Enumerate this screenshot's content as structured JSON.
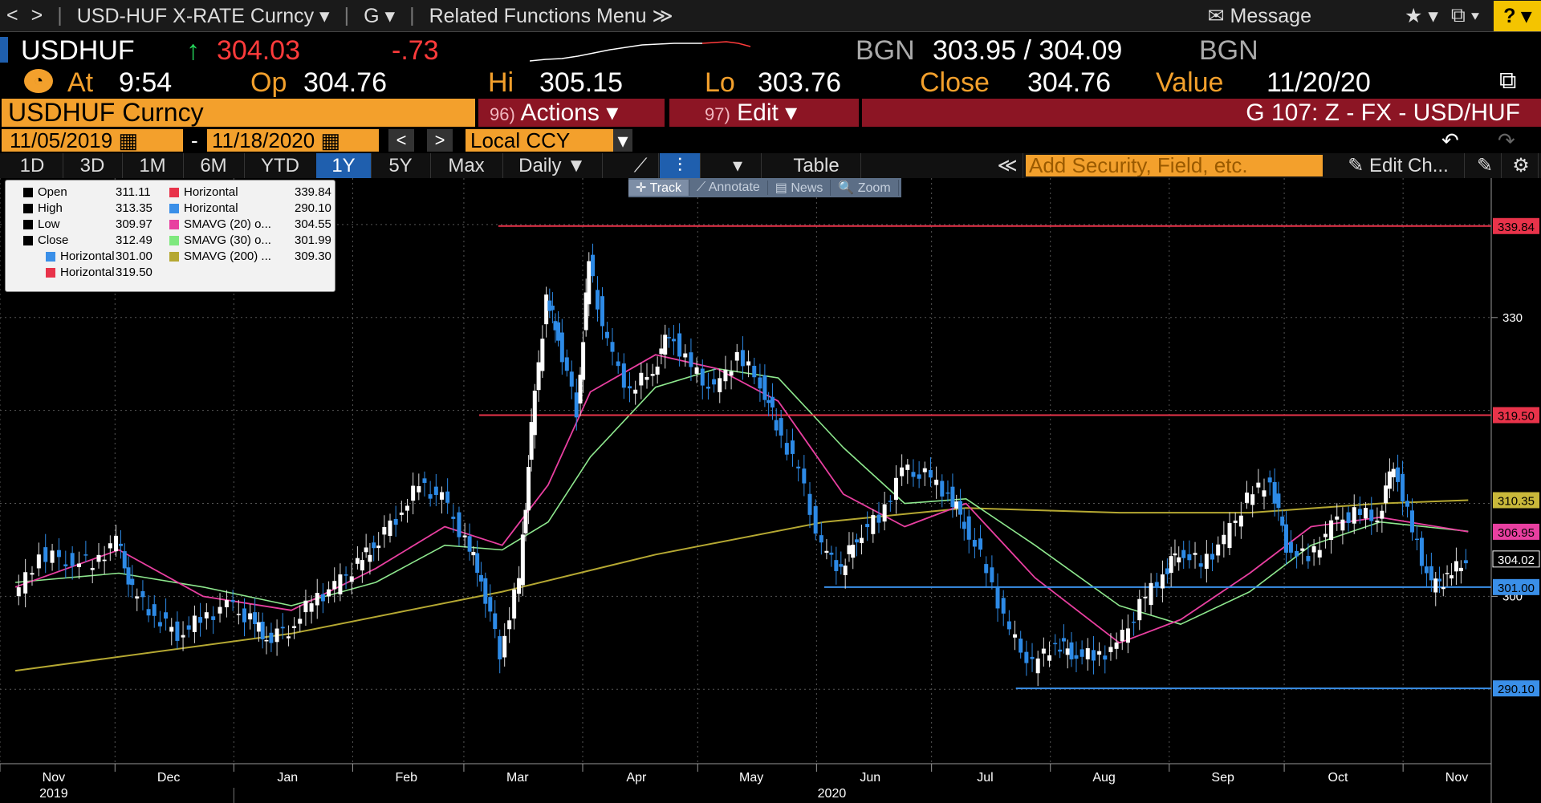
{
  "nav": {
    "back": "<",
    "fwd": ">",
    "ticker_menu": "USD-HUF X-RATE Curncy",
    "g_menu": "G",
    "related": "Related Functions Menu",
    "message": "Message",
    "help": "?"
  },
  "quote": {
    "symbol": "USDHUF",
    "last": "304.03",
    "change": "-.73",
    "bid_src": "BGN",
    "bid_ask": "303.95 / 304.09",
    "ask_src": "BGN",
    "at_label": "At",
    "at_time": "9:54",
    "op_label": "Op",
    "op": "304.76",
    "hi_label": "Hi",
    "hi": "305.15",
    "lo_label": "Lo",
    "lo": "303.76",
    "close_label": "Close",
    "close": "304.76",
    "value_label": "Value",
    "value": "11/20/20"
  },
  "security_bar": {
    "name": "USDHUF Curncy",
    "actions_num": "96)",
    "actions": "Actions",
    "edit_num": "97)",
    "edit": "Edit",
    "title": "G 107: Z - FX - USD/HUF"
  },
  "date_bar": {
    "start": "11/05/2019",
    "dash": "-",
    "end": "11/18/2020",
    "ccy": "Local CCY"
  },
  "tabs": [
    "1D",
    "3D",
    "1M",
    "6M",
    "YTD",
    "1Y",
    "5Y",
    "Max"
  ],
  "active_tab": "1Y",
  "period": "Daily",
  "table_label": "Table",
  "add_security_placeholder": "Add Security, Field, etc.",
  "edit_chart": "Edit Ch...",
  "chart_tools": [
    "Track",
    "Annotate",
    "News",
    "Zoom"
  ],
  "legend": [
    {
      "label": "Open",
      "value": "311.11",
      "color": "#000000"
    },
    {
      "label": "High",
      "value": "313.35",
      "color": "#000000"
    },
    {
      "label": "Low",
      "value": "309.97",
      "color": "#000000"
    },
    {
      "label": "Close",
      "value": "312.49",
      "color": "#000000"
    },
    {
      "label": "Horizontal",
      "value": "301.00",
      "color": "#3a8fe8"
    },
    {
      "label": "Horizontal",
      "value": "319.50",
      "color": "#e8334a"
    },
    {
      "label": "Horizontal",
      "value": "339.84",
      "color": "#e8334a"
    },
    {
      "label": "Horizontal",
      "value": "290.10",
      "color": "#3a8fe8"
    },
    {
      "label": "SMAVG (20)  o...",
      "value": "304.55",
      "color": "#e83fa0"
    },
    {
      "label": "SMAVG (30)  o...",
      "value": "301.99",
      "color": "#7ee87e"
    },
    {
      "label": "SMAVG (200)  ...",
      "value": "309.30",
      "color": "#b5a832"
    }
  ],
  "chart_data": {
    "type": "candlestick",
    "ylim": [
      282,
      345
    ],
    "y_ticks": [
      300,
      330
    ],
    "x_tick_labels": [
      "Nov",
      "Dec",
      "Jan",
      "Feb",
      "Mar",
      "Apr",
      "May",
      "Jun",
      "Jul",
      "Aug",
      "Sep",
      "Oct",
      "Nov"
    ],
    "year_labels": [
      "2019",
      "2020"
    ],
    "horizontal_lines": [
      {
        "value": 339.84,
        "label": "339.84",
        "color": "#e8334a",
        "from": "2020-03-10"
      },
      {
        "value": 319.5,
        "label": "319.50",
        "color": "#e8334a",
        "from": "2020-03-05"
      },
      {
        "value": 301.0,
        "label": "301.00",
        "color": "#3a8fe8",
        "from": "2020-06-03"
      },
      {
        "value": 290.1,
        "label": "290.10",
        "color": "#3a8fe8",
        "from": "2020-07-23"
      }
    ],
    "right_badges": [
      {
        "value": 310.35,
        "label": "310.35",
        "color": "#c9b83a"
      },
      {
        "value": 306.95,
        "label": "306.95",
        "color": "#e83fa0"
      },
      {
        "value": 304.02,
        "label": "304.02",
        "color": "#ffffff"
      }
    ],
    "close_series": [
      {
        "x": "2019-11-05",
        "y": 299.5
      },
      {
        "x": "2019-11-12",
        "y": 304.5
      },
      {
        "x": "2019-11-19",
        "y": 304.0
      },
      {
        "x": "2019-11-26",
        "y": 303.5
      },
      {
        "x": "2019-12-02",
        "y": 306.0
      },
      {
        "x": "2019-12-06",
        "y": 300.5
      },
      {
        "x": "2019-12-12",
        "y": 298.0
      },
      {
        "x": "2019-12-18",
        "y": 296.0
      },
      {
        "x": "2019-12-24",
        "y": 297.5
      },
      {
        "x": "2019-12-31",
        "y": 299.0
      },
      {
        "x": "2020-01-06",
        "y": 297.5
      },
      {
        "x": "2020-01-10",
        "y": 295.5
      },
      {
        "x": "2020-01-16",
        "y": 296.5
      },
      {
        "x": "2020-01-22",
        "y": 299.5
      },
      {
        "x": "2020-01-28",
        "y": 301.0
      },
      {
        "x": "2020-02-03",
        "y": 303.5
      },
      {
        "x": "2020-02-07",
        "y": 305.5
      },
      {
        "x": "2020-02-13",
        "y": 308.5
      },
      {
        "x": "2020-02-19",
        "y": 312.0
      },
      {
        "x": "2020-02-25",
        "y": 310.5
      },
      {
        "x": "2020-03-02",
        "y": 306.0
      },
      {
        "x": "2020-03-06",
        "y": 302.0
      },
      {
        "x": "2020-03-11",
        "y": 294.0
      },
      {
        "x": "2020-03-16",
        "y": 302.0
      },
      {
        "x": "2020-03-19",
        "y": 318.0
      },
      {
        "x": "2020-03-23",
        "y": 332.0
      },
      {
        "x": "2020-03-26",
        "y": 328.0
      },
      {
        "x": "2020-03-31",
        "y": 320.0
      },
      {
        "x": "2020-04-03",
        "y": 336.0
      },
      {
        "x": "2020-04-08",
        "y": 327.0
      },
      {
        "x": "2020-04-14",
        "y": 322.0
      },
      {
        "x": "2020-04-20",
        "y": 324.5
      },
      {
        "x": "2020-04-24",
        "y": 328.5
      },
      {
        "x": "2020-04-30",
        "y": 324.5
      },
      {
        "x": "2020-05-06",
        "y": 322.0
      },
      {
        "x": "2020-05-12",
        "y": 326.0
      },
      {
        "x": "2020-05-18",
        "y": 323.0
      },
      {
        "x": "2020-05-22",
        "y": 318.5
      },
      {
        "x": "2020-05-28",
        "y": 313.5
      },
      {
        "x": "2020-06-03",
        "y": 305.0
      },
      {
        "x": "2020-06-08",
        "y": 303.0
      },
      {
        "x": "2020-06-12",
        "y": 306.5
      },
      {
        "x": "2020-06-18",
        "y": 308.5
      },
      {
        "x": "2020-06-24",
        "y": 313.5
      },
      {
        "x": "2020-06-30",
        "y": 313.0
      },
      {
        "x": "2020-07-06",
        "y": 311.0
      },
      {
        "x": "2020-07-10",
        "y": 308.0
      },
      {
        "x": "2020-07-16",
        "y": 303.0
      },
      {
        "x": "2020-07-22",
        "y": 296.0
      },
      {
        "x": "2020-07-28",
        "y": 292.5
      },
      {
        "x": "2020-08-03",
        "y": 295.0
      },
      {
        "x": "2020-08-07",
        "y": 294.0
      },
      {
        "x": "2020-08-13",
        "y": 293.5
      },
      {
        "x": "2020-08-19",
        "y": 294.5
      },
      {
        "x": "2020-08-25",
        "y": 299.0
      },
      {
        "x": "2020-08-31",
        "y": 302.5
      },
      {
        "x": "2020-09-04",
        "y": 305.0
      },
      {
        "x": "2020-09-10",
        "y": 303.5
      },
      {
        "x": "2020-09-16",
        "y": 306.0
      },
      {
        "x": "2020-09-22",
        "y": 310.5
      },
      {
        "x": "2020-09-28",
        "y": 312.5
      },
      {
        "x": "2020-10-02",
        "y": 305.5
      },
      {
        "x": "2020-10-08",
        "y": 304.0
      },
      {
        "x": "2020-10-14",
        "y": 307.5
      },
      {
        "x": "2020-10-20",
        "y": 309.0
      },
      {
        "x": "2020-10-26",
        "y": 308.5
      },
      {
        "x": "2020-10-30",
        "y": 314.5
      },
      {
        "x": "2020-11-04",
        "y": 307.0
      },
      {
        "x": "2020-11-09",
        "y": 301.0
      },
      {
        "x": "2020-11-13",
        "y": 302.0
      },
      {
        "x": "2020-11-18",
        "y": 304.0
      }
    ],
    "sma20": [
      {
        "x": "2019-11-05",
        "y": 301.0
      },
      {
        "x": "2019-12-02",
        "y": 305.0
      },
      {
        "x": "2019-12-24",
        "y": 300.0
      },
      {
        "x": "2020-01-16",
        "y": 298.5
      },
      {
        "x": "2020-02-07",
        "y": 303.0
      },
      {
        "x": "2020-02-25",
        "y": 307.5
      },
      {
        "x": "2020-03-11",
        "y": 305.5
      },
      {
        "x": "2020-03-23",
        "y": 312.0
      },
      {
        "x": "2020-04-03",
        "y": 322.0
      },
      {
        "x": "2020-04-20",
        "y": 326.0
      },
      {
        "x": "2020-05-06",
        "y": 324.5
      },
      {
        "x": "2020-05-22",
        "y": 321.0
      },
      {
        "x": "2020-06-08",
        "y": 311.0
      },
      {
        "x": "2020-06-24",
        "y": 307.5
      },
      {
        "x": "2020-07-10",
        "y": 310.0
      },
      {
        "x": "2020-07-28",
        "y": 302.0
      },
      {
        "x": "2020-08-19",
        "y": 295.0
      },
      {
        "x": "2020-09-04",
        "y": 297.5
      },
      {
        "x": "2020-09-22",
        "y": 302.5
      },
      {
        "x": "2020-10-08",
        "y": 307.5
      },
      {
        "x": "2020-10-26",
        "y": 308.5
      },
      {
        "x": "2020-11-18",
        "y": 306.95
      }
    ],
    "sma30": [
      {
        "x": "2019-11-05",
        "y": 301.5
      },
      {
        "x": "2019-12-02",
        "y": 302.5
      },
      {
        "x": "2019-12-24",
        "y": 301.0
      },
      {
        "x": "2020-01-16",
        "y": 299.0
      },
      {
        "x": "2020-02-07",
        "y": 301.5
      },
      {
        "x": "2020-02-25",
        "y": 305.5
      },
      {
        "x": "2020-03-11",
        "y": 305.0
      },
      {
        "x": "2020-03-23",
        "y": 308.0
      },
      {
        "x": "2020-04-03",
        "y": 315.0
      },
      {
        "x": "2020-04-20",
        "y": 322.5
      },
      {
        "x": "2020-05-06",
        "y": 324.5
      },
      {
        "x": "2020-05-22",
        "y": 323.5
      },
      {
        "x": "2020-06-08",
        "y": 316.0
      },
      {
        "x": "2020-06-24",
        "y": 310.0
      },
      {
        "x": "2020-07-10",
        "y": 310.5
      },
      {
        "x": "2020-07-28",
        "y": 305.5
      },
      {
        "x": "2020-08-19",
        "y": 299.0
      },
      {
        "x": "2020-09-04",
        "y": 297.0
      },
      {
        "x": "2020-09-22",
        "y": 300.5
      },
      {
        "x": "2020-10-08",
        "y": 305.5
      },
      {
        "x": "2020-10-26",
        "y": 308.0
      },
      {
        "x": "2020-11-18",
        "y": 307.0
      }
    ],
    "sma200": [
      {
        "x": "2019-11-05",
        "y": 292.0
      },
      {
        "x": "2020-01-16",
        "y": 296.0
      },
      {
        "x": "2020-03-11",
        "y": 300.5
      },
      {
        "x": "2020-04-20",
        "y": 304.5
      },
      {
        "x": "2020-06-03",
        "y": 308.0
      },
      {
        "x": "2020-07-10",
        "y": 309.5
      },
      {
        "x": "2020-08-19",
        "y": 309.0
      },
      {
        "x": "2020-09-22",
        "y": 309.0
      },
      {
        "x": "2020-10-26",
        "y": 310.0
      },
      {
        "x": "2020-11-18",
        "y": 310.35
      }
    ]
  }
}
